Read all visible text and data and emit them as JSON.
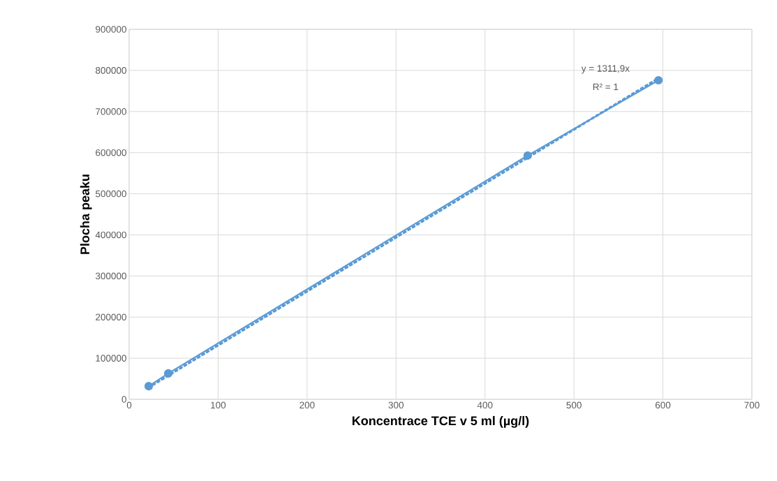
{
  "chart_data": {
    "type": "line",
    "xlabel": "Koncentrace TCE v 5 ml  (µg/l)",
    "ylabel": "Plocha peaku",
    "series": [
      {
        "color": "#5b9bd5",
        "marker": "circle",
        "line_style": "solid",
        "x": [
          22,
          44,
          448,
          595
        ],
        "values": [
          32000,
          63000,
          593000,
          776000
        ]
      },
      {
        "color": "#5b9bd5",
        "marker": "none",
        "line_style": "dotted",
        "x": [
          22,
          595
        ],
        "values": [
          29000,
          781000
        ]
      }
    ],
    "annotations": [
      "y = 1311,9x",
      "R² = 1"
    ],
    "xlim": [
      0,
      700
    ],
    "xticks": [
      0,
      100,
      200,
      300,
      400,
      500,
      600,
      700
    ],
    "ylim": [
      0,
      900000
    ],
    "yticks": [
      0,
      100000,
      200000,
      300000,
      400000,
      500000,
      600000,
      700000,
      800000,
      900000
    ],
    "grid": true
  }
}
